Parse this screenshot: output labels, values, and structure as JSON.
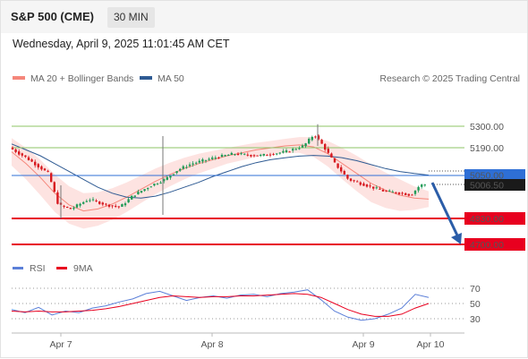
{
  "header": {
    "title": "S&P 500 (CME)",
    "timeframe": "30 MIN"
  },
  "datetime": "Wednesday, April 9, 2025 11:01:45 AM CET",
  "legend": {
    "ma20": "MA 20 + Bollinger Bands",
    "ma50": "MA 50",
    "credit": "Research © 2025 Trading Central"
  },
  "colors": {
    "ma20": "#f5877b",
    "bands_fill": "#fde3e1",
    "ma50": "#2f5b93",
    "up": "#1e9b57",
    "down": "#d71920",
    "resistance": "#8cc466",
    "support": "#e8001f",
    "current": "#2e6fd6",
    "arrow": "#2b5da8",
    "rsi": "#5b7fd8",
    "rsi_ma": "#e8001f"
  },
  "price_labels": {
    "r2": "5300.00",
    "r1": "5190.00",
    "pivot": "5050.00",
    "last": "5006.50",
    "s1": "4830.00",
    "s2": "4700.00"
  },
  "rsi_legend": {
    "rsi": "RSI",
    "ma": "9MA"
  },
  "rsi_ticks": [
    "70",
    "50",
    "30"
  ],
  "x_ticks": [
    "Apr 7",
    "Apr 8",
    "Apr 9",
    "Apr 10"
  ],
  "chart_data": [
    {
      "type": "line",
      "title": "S&P 500 (CME) 30 MIN",
      "y_levels": {
        "resistance_2": 5300,
        "resistance_1": 5190,
        "pivot": 5050,
        "last": 5006.5,
        "support_1": 4830,
        "support_2": 4700
      },
      "series": [
        {
          "name": "MA 50",
          "values": [
            5210,
            5180,
            5150,
            5110,
            5070,
            5030,
            4990,
            4960,
            4940,
            4935,
            4945,
            4965,
            4990,
            5015,
            5045,
            5070,
            5095,
            5115,
            5130,
            5140,
            5148,
            5152,
            5148,
            5140,
            5125,
            5105,
            5085,
            5070,
            5060,
            5052
          ]
        },
        {
          "name": "MA 20 + Bollinger Bands",
          "values": [
            5170,
            5110,
            5040,
            4960,
            4900,
            4870,
            4880,
            4905,
            4940,
            4980,
            5020,
            5055,
            5085,
            5110,
            5130,
            5150,
            5165,
            5180,
            5190,
            5200,
            5205,
            5195,
            5160,
            5110,
            5060,
            5010,
            4975,
            4950,
            4935,
            4930
          ]
        }
      ],
      "x_labels": [
        "Apr 7",
        "Apr 8",
        "Apr 9",
        "Apr 10"
      ]
    },
    {
      "type": "line",
      "title": "RSI",
      "ylim": [
        0,
        100
      ],
      "y_ticks": [
        70,
        50,
        30
      ],
      "series": [
        {
          "name": "RSI",
          "values": [
            42,
            38,
            45,
            35,
            40,
            38,
            44,
            47,
            52,
            56,
            63,
            66,
            60,
            54,
            58,
            60,
            57,
            61,
            62,
            59,
            63,
            65,
            68,
            55,
            40,
            32,
            28,
            30,
            36,
            44,
            62,
            58
          ]
        },
        {
          "name": "9MA",
          "values": [
            40,
            39,
            40,
            39,
            39,
            40,
            41,
            43,
            46,
            50,
            54,
            58,
            60,
            59,
            58,
            59,
            59,
            60,
            60,
            61,
            62,
            63,
            62,
            58,
            50,
            42,
            36,
            33,
            33,
            36,
            44,
            50
          ]
        }
      ]
    }
  ]
}
